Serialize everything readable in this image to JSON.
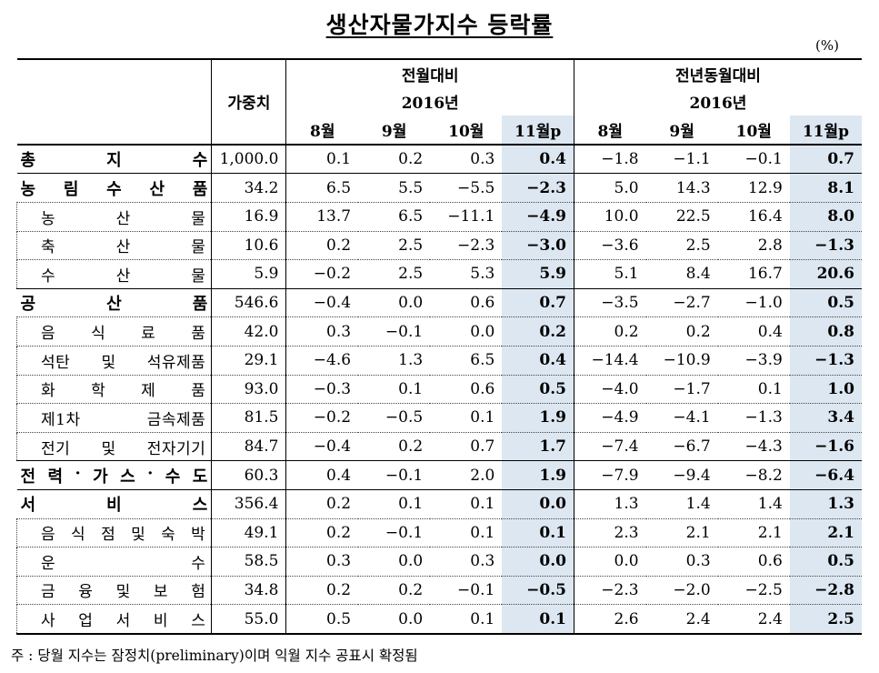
{
  "title": "생산자물가지수 등락률",
  "unit": "(%)",
  "header": {
    "weight": "가중치",
    "group_mom": "전월대비",
    "group_yoy": "전년동월대비",
    "year_mom": "2016년",
    "year_yoy": "2016년",
    "months": [
      "8월",
      "9월",
      "10월",
      "11월p"
    ]
  },
  "rows": [
    {
      "label": "총 지 수",
      "chars": [
        "총",
        "지",
        "수"
      ],
      "level": 0,
      "weight": "1,000.0",
      "mom": [
        "0.1",
        "0.2",
        "0.3",
        "0.4"
      ],
      "yoy": [
        "−1.8",
        "−1.1",
        "−0.1",
        "0.7"
      ]
    },
    {
      "label": "농림수산품",
      "chars": [
        "농",
        "림",
        "수",
        "산",
        "품"
      ],
      "level": 0,
      "weight": "34.2",
      "mom": [
        "6.5",
        "5.5",
        "−5.5",
        "−2.3"
      ],
      "yoy": [
        "5.0",
        "14.3",
        "12.9",
        "8.1"
      ]
    },
    {
      "label": "농산물",
      "chars": [
        "농",
        "산",
        "물"
      ],
      "level": 1,
      "weight": "16.9",
      "mom": [
        "13.7",
        "6.5",
        "−11.1",
        "−4.9"
      ],
      "yoy": [
        "10.0",
        "22.5",
        "16.4",
        "8.0"
      ]
    },
    {
      "label": "축산물",
      "chars": [
        "축",
        "산",
        "물"
      ],
      "level": 1,
      "weight": "10.6",
      "mom": [
        "0.2",
        "2.5",
        "−2.3",
        "−3.0"
      ],
      "yoy": [
        "−3.6",
        "2.5",
        "2.8",
        "−1.3"
      ]
    },
    {
      "label": "수산물",
      "chars": [
        "수",
        "산",
        "물"
      ],
      "level": 1,
      "weight": "5.9",
      "mom": [
        "−0.2",
        "2.5",
        "5.3",
        "5.9"
      ],
      "yoy": [
        "5.1",
        "8.4",
        "16.7",
        "20.6"
      ]
    },
    {
      "label": "공산품",
      "chars": [
        "공",
        "산",
        "품"
      ],
      "level": 0,
      "weight": "546.6",
      "mom": [
        "−0.4",
        "0.0",
        "0.6",
        "0.7"
      ],
      "yoy": [
        "−3.5",
        "−2.7",
        "−1.0",
        "0.5"
      ]
    },
    {
      "label": "음식료품",
      "chars": [
        "음",
        "식",
        "료",
        "품"
      ],
      "level": 1,
      "weight": "42.0",
      "mom": [
        "0.3",
        "−0.1",
        "0.0",
        "0.2"
      ],
      "yoy": [
        "0.2",
        "0.2",
        "0.4",
        "0.8"
      ]
    },
    {
      "label": "석탄 및 석유제품",
      "chars": [
        "석탄",
        "및",
        "석유제품"
      ],
      "level": 1,
      "weight": "29.1",
      "mom": [
        "−4.6",
        "1.3",
        "6.5",
        "0.4"
      ],
      "yoy": [
        "−14.4",
        "−10.9",
        "−3.9",
        "−1.3"
      ]
    },
    {
      "label": "화학제품",
      "chars": [
        "화",
        "학",
        "제",
        "품"
      ],
      "level": 1,
      "weight": "93.0",
      "mom": [
        "−0.3",
        "0.1",
        "0.6",
        "0.5"
      ],
      "yoy": [
        "−4.0",
        "−1.7",
        "0.1",
        "1.0"
      ]
    },
    {
      "label": "제1차 금속제품",
      "chars": [
        "제1차",
        "금속제품"
      ],
      "level": 1,
      "weight": "81.5",
      "mom": [
        "−0.2",
        "−0.5",
        "0.1",
        "1.9"
      ],
      "yoy": [
        "−4.9",
        "−4.1",
        "−1.3",
        "3.4"
      ]
    },
    {
      "label": "전기 및 전자기기",
      "chars": [
        "전기",
        "및",
        "전자기기"
      ],
      "level": 1,
      "weight": "84.7",
      "mom": [
        "−0.4",
        "0.2",
        "0.7",
        "1.7"
      ],
      "yoy": [
        "−7.4",
        "−6.7",
        "−4.3",
        "−1.6"
      ]
    },
    {
      "label": "전력·가스·수도",
      "chars": [
        "전",
        "력",
        "·",
        "가",
        "스",
        "·",
        "수",
        "도"
      ],
      "level": 0,
      "weight": "60.3",
      "mom": [
        "0.4",
        "−0.1",
        "2.0",
        "1.9"
      ],
      "yoy": [
        "−7.9",
        "−9.4",
        "−8.2",
        "−6.4"
      ]
    },
    {
      "label": "서비스",
      "chars": [
        "서",
        "비",
        "스"
      ],
      "level": 0,
      "weight": "356.4",
      "mom": [
        "0.2",
        "0.1",
        "0.1",
        "0.0"
      ],
      "yoy": [
        "1.3",
        "1.4",
        "1.4",
        "1.3"
      ]
    },
    {
      "label": "음식점 및 숙박",
      "chars": [
        "음",
        "식",
        "점",
        "및",
        "숙",
        "박"
      ],
      "level": 1,
      "weight": "49.1",
      "mom": [
        "0.2",
        "−0.1",
        "0.1",
        "0.1"
      ],
      "yoy": [
        "2.3",
        "2.1",
        "2.1",
        "2.1"
      ]
    },
    {
      "label": "운수",
      "chars": [
        "운",
        "수"
      ],
      "level": 1,
      "weight": "58.5",
      "mom": [
        "0.3",
        "0.0",
        "0.3",
        "0.0"
      ],
      "yoy": [
        "0.0",
        "0.3",
        "0.6",
        "0.5"
      ]
    },
    {
      "label": "금융 및 보험",
      "chars": [
        "금",
        "융",
        "및",
        "보",
        "험"
      ],
      "level": 1,
      "weight": "34.8",
      "mom": [
        "0.2",
        "0.2",
        "−0.1",
        "−0.5"
      ],
      "yoy": [
        "−2.3",
        "−2.0",
        "−2.5",
        "−2.8"
      ]
    },
    {
      "label": "사업서비스",
      "chars": [
        "사",
        "업",
        "서",
        "비",
        "스"
      ],
      "level": 1,
      "weight": "55.0",
      "mom": [
        "0.5",
        "0.0",
        "0.1",
        "0.1"
      ],
      "yoy": [
        "2.6",
        "2.4",
        "2.4",
        "2.5"
      ]
    }
  ],
  "footnote": "주 : 당월 지수는 잠정치(preliminary)이며 익월 지수 공표시 확정됨"
}
